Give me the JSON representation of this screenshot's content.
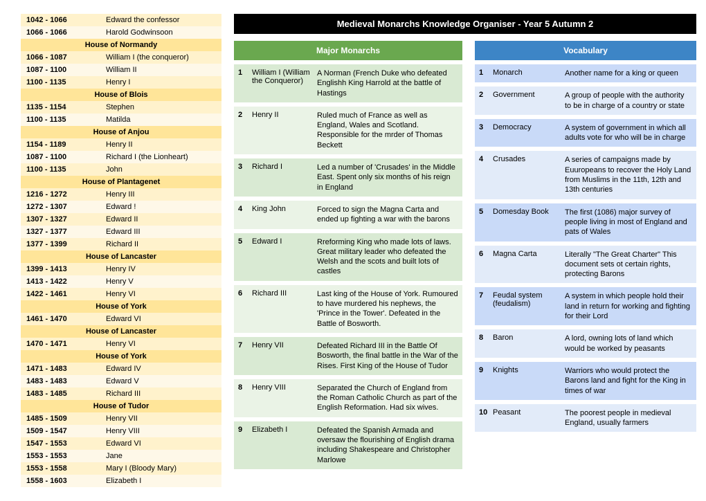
{
  "title": "Medieval Monarchs Knowledge Organiser - Year 5 Autumn 2",
  "colors": {
    "titleBg": "#000000",
    "titleFg": "#ffffff",
    "timelineAlt0": "#fff2cc",
    "timelineAlt1": "#fef8e8",
    "houseBg": "#ffe599",
    "greenHeader": "#6aa84f",
    "greenAlt0": "#d9ead3",
    "greenAlt1": "#eaf3e6",
    "blueHeader": "#3d85c6",
    "blueAlt0": "#c9daf8",
    "blueAlt1": "#e2ebf9"
  },
  "timeline": [
    {
      "type": "row",
      "years": "1042 - 1066",
      "name": "Edward the confessor"
    },
    {
      "type": "row",
      "years": "1066 - 1066",
      "name": "Harold Godwinsoon"
    },
    {
      "type": "house",
      "label": "House of Normandy"
    },
    {
      "type": "row",
      "years": "1066 - 1087",
      "name": "William I (the conqueror)"
    },
    {
      "type": "row",
      "years": "1087 - 1100",
      "name": "William II"
    },
    {
      "type": "row",
      "years": "1100 - 1135",
      "name": "Henry I"
    },
    {
      "type": "house",
      "label": "House of Blois"
    },
    {
      "type": "row",
      "years": "1135 - 1154",
      "name": "Stephen"
    },
    {
      "type": "row",
      "years": "1100 - 1135",
      "name": "Matilda"
    },
    {
      "type": "house",
      "label": "House of Anjou"
    },
    {
      "type": "row",
      "years": "1154 - 1189",
      "name": "Henry II"
    },
    {
      "type": "row",
      "years": "1087 - 1100",
      "name": "Richard I (the Lionheart)"
    },
    {
      "type": "row",
      "years": "1100 - 1135",
      "name": "John"
    },
    {
      "type": "house",
      "label": "House of Plantagenet"
    },
    {
      "type": "row",
      "years": "1216 - 1272",
      "name": "Henry III"
    },
    {
      "type": "row",
      "years": "1272 - 1307",
      "name": "Edward !"
    },
    {
      "type": "row",
      "years": "1307 - 1327",
      "name": "Edward II"
    },
    {
      "type": "row",
      "years": "1327 - 1377",
      "name": "Edward III"
    },
    {
      "type": "row",
      "years": "1377 - 1399",
      "name": "Richard II"
    },
    {
      "type": "house",
      "label": "House of Lancaster"
    },
    {
      "type": "row",
      "years": "1399 - 1413",
      "name": "Henry IV"
    },
    {
      "type": "row",
      "years": "1413 - 1422",
      "name": "Henry V"
    },
    {
      "type": "row",
      "years": "1422 - 1461",
      "name": "Henry VI"
    },
    {
      "type": "house",
      "label": "House of York"
    },
    {
      "type": "row",
      "years": "1461 - 1470",
      "name": "Edward VI"
    },
    {
      "type": "house",
      "label": "House of Lancaster"
    },
    {
      "type": "row",
      "years": "1470 - 1471",
      "name": "Henry VI"
    },
    {
      "type": "house",
      "label": "House of York"
    },
    {
      "type": "row",
      "years": "1471 - 1483",
      "name": "Edward IV"
    },
    {
      "type": "row",
      "years": "1483 - 1483",
      "name": "Edward V"
    },
    {
      "type": "row",
      "years": "1483 - 1485",
      "name": "Richard III"
    },
    {
      "type": "house",
      "label": "House of Tudor"
    },
    {
      "type": "row",
      "years": "1485 - 1509",
      "name": "Henry VII"
    },
    {
      "type": "row",
      "years": "1509 - 1547",
      "name": "Henry VIII"
    },
    {
      "type": "row",
      "years": "1547 - 1553",
      "name": "Edward VI"
    },
    {
      "type": "row",
      "years": "1553 - 1553",
      "name": "Jane"
    },
    {
      "type": "row",
      "years": "1553 - 1558",
      "name": "Mary I (Bloody Mary)"
    },
    {
      "type": "row",
      "years": "1558 - 1603",
      "name": "Elizabeth I"
    }
  ],
  "monarchsHeader": "Major Monarchs",
  "monarchs": [
    {
      "n": "1",
      "term": "William I (William the Conqueror)",
      "desc": "A Norman (French Duke who defeated Englishh King Harrold at the battle of Hastings"
    },
    {
      "n": "2",
      "term": "Henry II",
      "desc": "Ruled much of France as well as England, Wales and Scotland. Responsible for the mrder of Thomas Beckett"
    },
    {
      "n": "3",
      "term": "Richard I",
      "desc": "Led a number of 'Crusades' in the Middle East. Spent only six months of his reign in England"
    },
    {
      "n": "4",
      "term": "King John",
      "desc": "Forced to sign the Magna Carta and ended up fighting a war with the barons"
    },
    {
      "n": "5",
      "term": "Edward I",
      "desc": "Rreforming King who made lots of laws. Great military leader who defeated the Welsh and the scots and built lots of castles"
    },
    {
      "n": "6",
      "term": "Richard III",
      "desc": "Last king of the House of York. Rumoured to have murdered his nephews, the 'Prince in the Tower'. Defeated in the Battle of Bosworth."
    },
    {
      "n": "7",
      "term": "Henry VII",
      "desc": "Defeated Richard III in the Battle Of Bosworth, the final battle in the War of the Rises. First King of the House of Tudor"
    },
    {
      "n": "8",
      "term": "Henry VIII",
      "desc": "Separated the Church of England from the Roman Catholic Church as part of the English Reformation. Had six wives."
    },
    {
      "n": "9",
      "term": "Elizabeth I",
      "desc": "Defeated the Spanish Armada and oversaw the flourishing of English drama including Shakespeare and Christopher Marlowe"
    }
  ],
  "vocabHeader": "Vocabulary",
  "vocab": [
    {
      "n": "1",
      "term": "Monarch",
      "desc": "Another name for a king or queen"
    },
    {
      "n": "2",
      "term": "Government",
      "desc": "A group of people with the authority to be in charge of a country or state"
    },
    {
      "n": "3",
      "term": "Democracy",
      "desc": "A system of government in which all adults vote for who will be in charge"
    },
    {
      "n": "4",
      "term": "Crusades",
      "desc": "A series of campaigns made by Euuropeans to recover the Holy Land from Muslims in the 11th, 12th and 13th centuries"
    },
    {
      "n": "5",
      "term": "Domesday Book",
      "desc": "The first (1086) major survey of people living in most of England and pats of Wales"
    },
    {
      "n": "6",
      "term": "Magna Carta",
      "desc": "Literally \"The Great Charter\" This document sets ot certain rights, protecting Barons"
    },
    {
      "n": "7",
      "term": "Feudal system (feudalism)",
      "desc": "A system in which people hold their land in return for working and fighting for their Lord"
    },
    {
      "n": "8",
      "term": "Baron",
      "desc": "A lord, owning lots of land which would be worked by peasants"
    },
    {
      "n": "9",
      "term": "Knights",
      "desc": "Warriors who would protect the Barons land and fight for the King in times of war"
    },
    {
      "n": "10",
      "term": "Peasant",
      "desc": "The poorest people in medieval England, usually farmers"
    }
  ]
}
